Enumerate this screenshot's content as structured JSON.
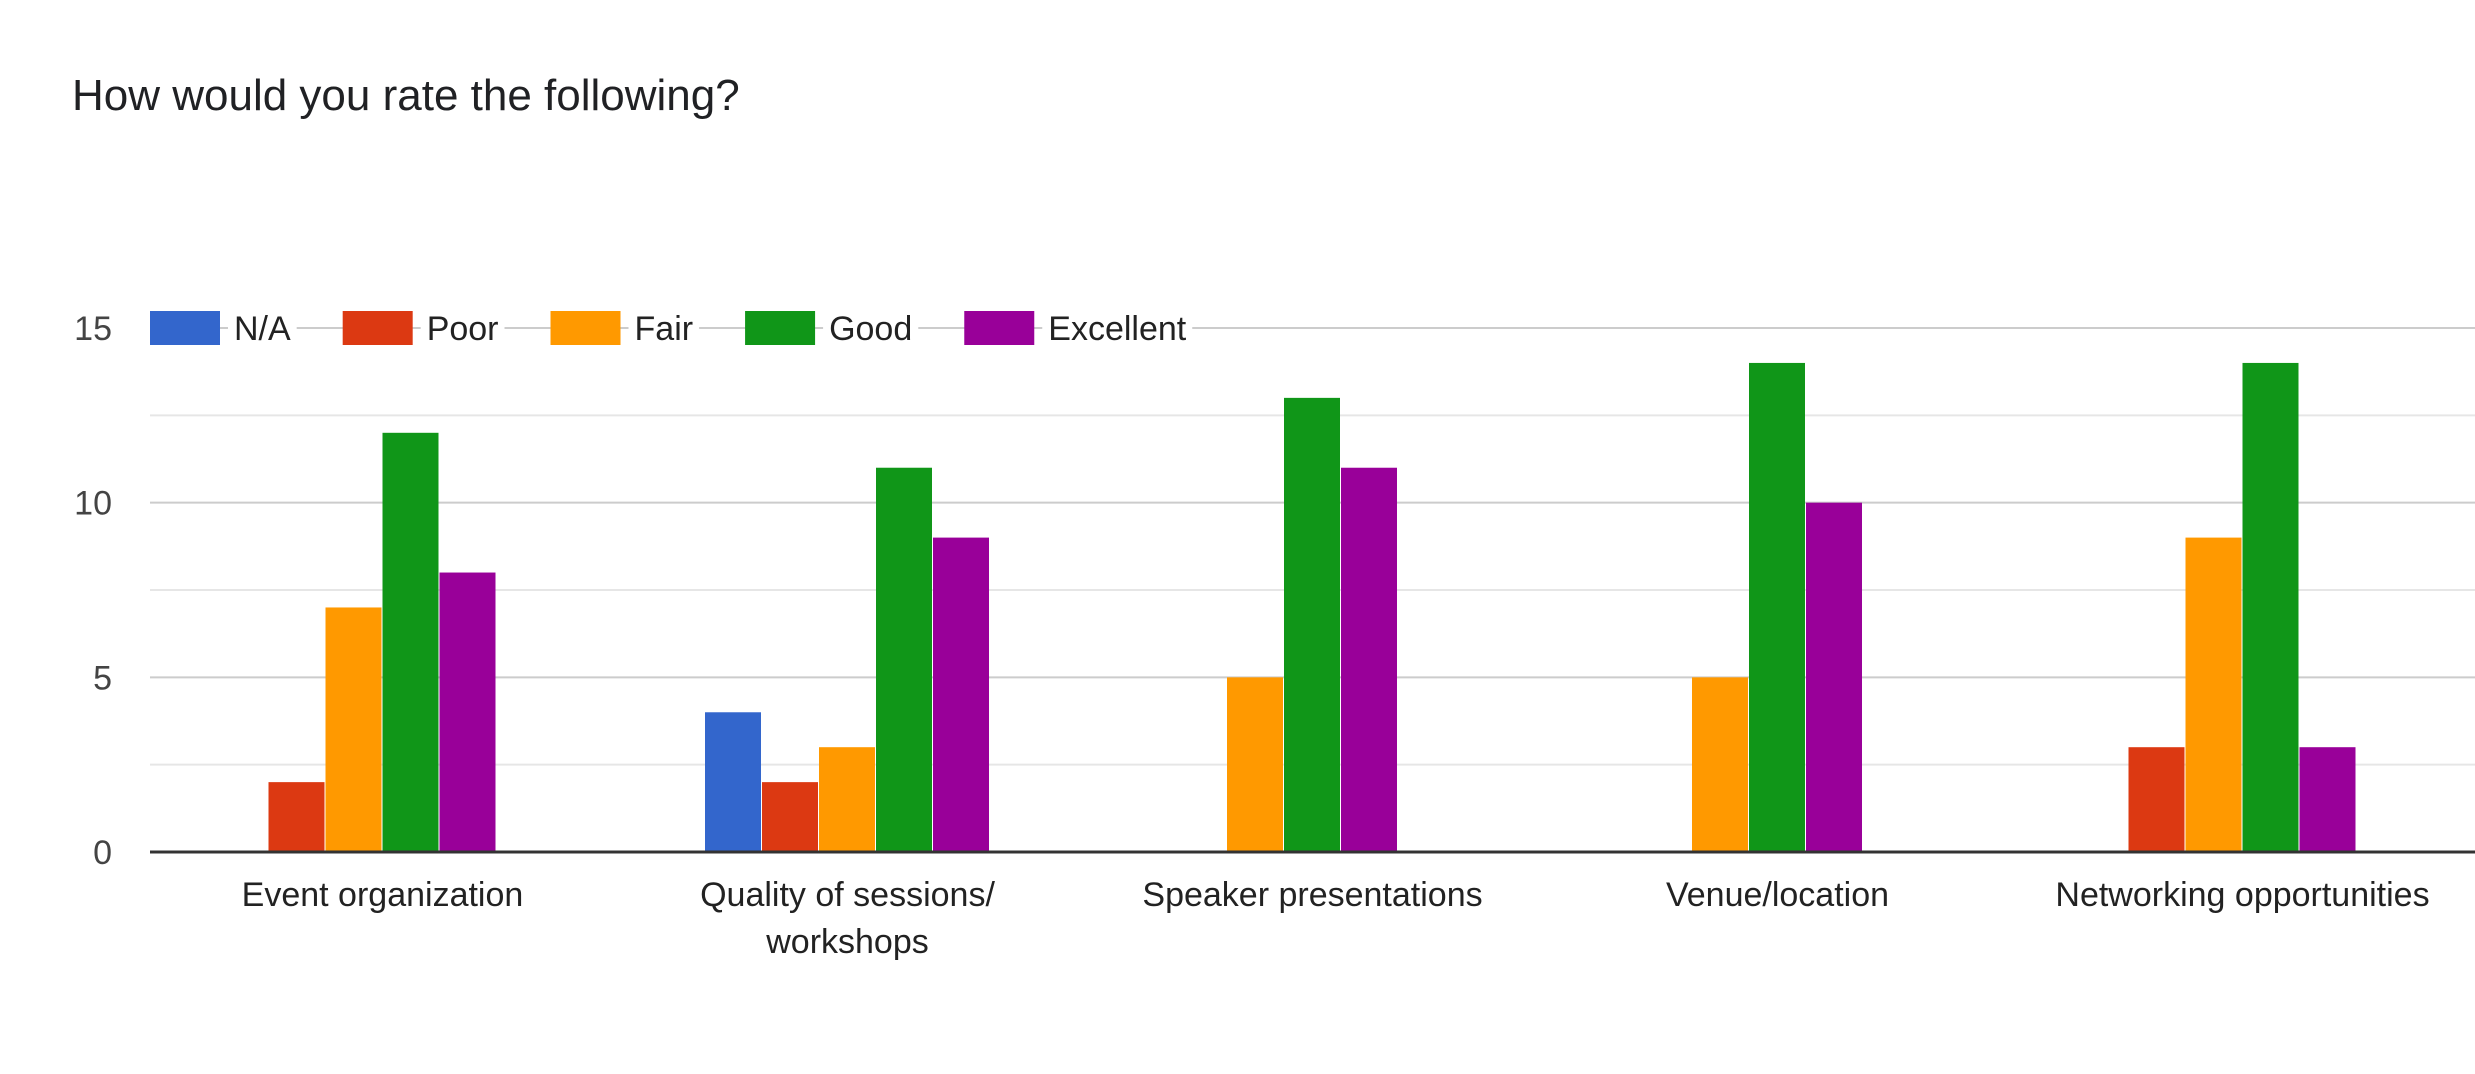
{
  "chart_data": {
    "type": "bar",
    "title": "How would you rate the following?",
    "categories": [
      [
        "Event organization"
      ],
      [
        "Quality of sessions/",
        "workshops"
      ],
      [
        "Speaker presentations"
      ],
      [
        "Venue/location"
      ],
      [
        "Networking opportunities"
      ]
    ],
    "series": [
      {
        "name": "N/A",
        "color": "#3366cc",
        "values": [
          0,
          4,
          0,
          0,
          0
        ]
      },
      {
        "name": "Poor",
        "color": "#dc3912",
        "values": [
          2,
          2,
          0,
          0,
          3
        ]
      },
      {
        "name": "Fair",
        "color": "#ff9900",
        "values": [
          7,
          3,
          5,
          5,
          9
        ]
      },
      {
        "name": "Good",
        "color": "#109618",
        "values": [
          12,
          11,
          13,
          14,
          14
        ]
      },
      {
        "name": "Excellent",
        "color": "#990099",
        "values": [
          8,
          9,
          11,
          10,
          3
        ]
      }
    ],
    "ylim": [
      0,
      15
    ],
    "yticks": [
      0,
      5,
      10,
      15
    ],
    "grid": true,
    "legend_position": "top-left"
  }
}
